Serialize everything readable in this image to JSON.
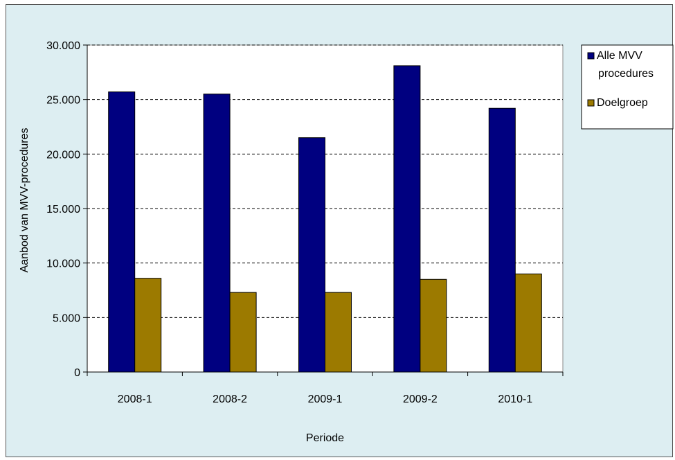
{
  "chart_data": {
    "type": "bar",
    "categories": [
      "2008-1",
      "2008-2",
      "2009-1",
      "2009-2",
      "2010-1"
    ],
    "series": [
      {
        "name": "Alle MVV procedures",
        "color": "#000080",
        "values": [
          25700,
          25500,
          21500,
          28100,
          24200
        ]
      },
      {
        "name": "Doelgroep",
        "color": "#9c7a00",
        "values": [
          8600,
          7300,
          7300,
          8500,
          9000
        ]
      }
    ],
    "xlabel": "Periode",
    "ylabel": "Aanbod van MVV-procedures",
    "ylim": [
      0,
      30000
    ],
    "y_ticks": [
      0,
      5000,
      10000,
      15000,
      20000,
      25000,
      30000
    ],
    "y_tick_labels": [
      "0",
      "5.000",
      "10.000",
      "15.000",
      "20.000",
      "25.000",
      "30.000"
    ],
    "grid": true,
    "legend_position": "right",
    "legend_lines": [
      [
        "Alle MVV",
        "procedures"
      ],
      [
        "Doelgroep"
      ]
    ],
    "colors": {
      "background": "#ddeef2",
      "plot": "#ffffff",
      "grid": "#000000"
    }
  }
}
